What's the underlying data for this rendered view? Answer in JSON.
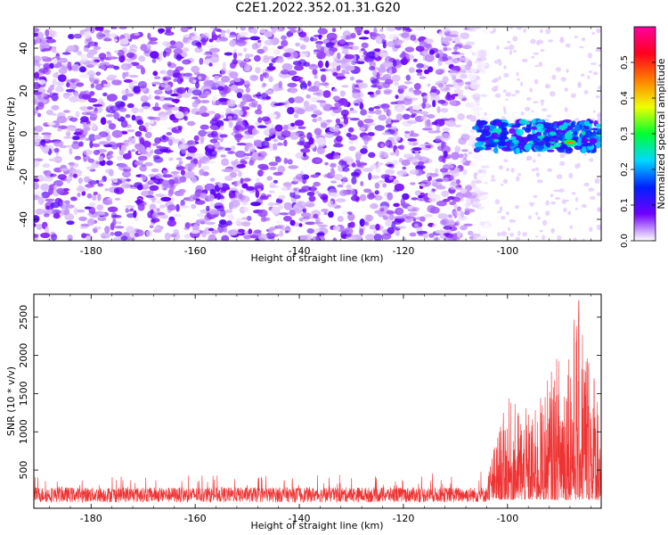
{
  "title": "C2E1.2022.352.01.31.G20",
  "chart_data": [
    {
      "type": "heatmap",
      "xlabel": "Height of straight line (km)",
      "ylabel": "Frequency (Hz)",
      "xlim": [
        -191,
        -82
      ],
      "ylim": [
        -50,
        50
      ],
      "xticks": [
        -180,
        -160,
        -140,
        -120,
        -100
      ],
      "yticks": [
        -40,
        -20,
        0,
        20,
        40
      ],
      "colorbar": {
        "label": "Normalized spectral amplitude",
        "range": [
          0,
          0.6
        ],
        "ticks": [
          "0.0",
          "0.1",
          "0.2",
          "0.3",
          "0.4",
          "0.5"
        ],
        "colors": [
          "#ffffff",
          "#7000ff",
          "#0020ff",
          "#00d8ff",
          "#00ff30",
          "#f0ff00",
          "#ff8000",
          "#ff0020",
          "#ff00a0"
        ]
      },
      "features": [
        {
          "region": "noise",
          "x": [
            -191,
            -104
          ],
          "y": [
            -50,
            50
          ],
          "amplitude": 0.05
        },
        {
          "region": "signal band",
          "x": [
            -106,
            -82
          ],
          "y": [
            -8,
            6
          ],
          "amplitude": 0.2
        },
        {
          "region": "peak",
          "x": [
            -88,
            -88
          ],
          "y": [
            -4,
            -4
          ],
          "amplitude": 0.45
        }
      ]
    },
    {
      "type": "line",
      "xlabel": "Height of straight line (km)",
      "ylabel": "SNR (10 * v/v)",
      "xlim": [
        -191,
        -82
      ],
      "ylim": [
        0,
        2800
      ],
      "xticks": [
        -180,
        -160,
        -140,
        -120,
        -100
      ],
      "yticks": [
        500,
        1000,
        1500,
        2000,
        2500
      ],
      "color": "#ee3333",
      "baseline": 220,
      "envelope": [
        {
          "x": -191,
          "y": 420
        },
        {
          "x": -120,
          "y": 440
        },
        {
          "x": -104,
          "y": 500
        },
        {
          "x": -100,
          "y": 1450
        },
        {
          "x": -95,
          "y": 1250
        },
        {
          "x": -90,
          "y": 2100
        },
        {
          "x": -86,
          "y": 2800
        },
        {
          "x": -82,
          "y": 1500
        }
      ]
    }
  ]
}
